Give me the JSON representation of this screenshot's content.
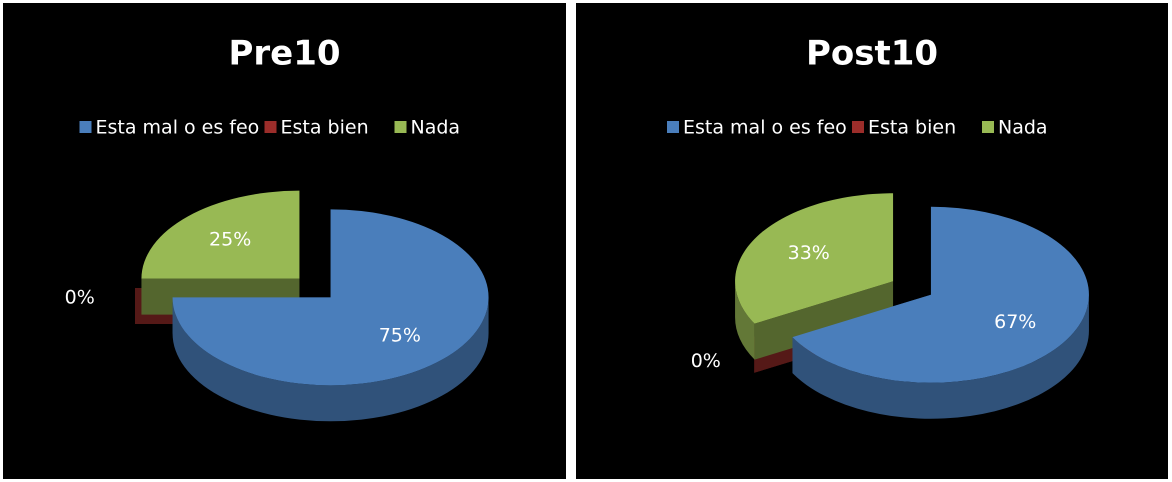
{
  "chart_data": [
    {
      "type": "pie",
      "title": "Pre10",
      "categories": [
        "Esta mal o es feo",
        "Esta bien",
        "Nada"
      ],
      "values": [
        75,
        0,
        25
      ],
      "value_labels": [
        "75%",
        "0%",
        "25%"
      ],
      "colors": [
        "#4a7ebb",
        "#9b2d2a",
        "#98b954"
      ],
      "legend": "top"
    },
    {
      "type": "pie",
      "title": "Post10",
      "categories": [
        "Esta mal o es feo",
        "Esta bien",
        "Nada"
      ],
      "values": [
        67,
        0,
        33
      ],
      "value_labels": [
        "67%",
        "0%",
        "33%"
      ],
      "colors": [
        "#4a7ebb",
        "#9b2d2a",
        "#98b954"
      ],
      "legend": "top"
    }
  ]
}
